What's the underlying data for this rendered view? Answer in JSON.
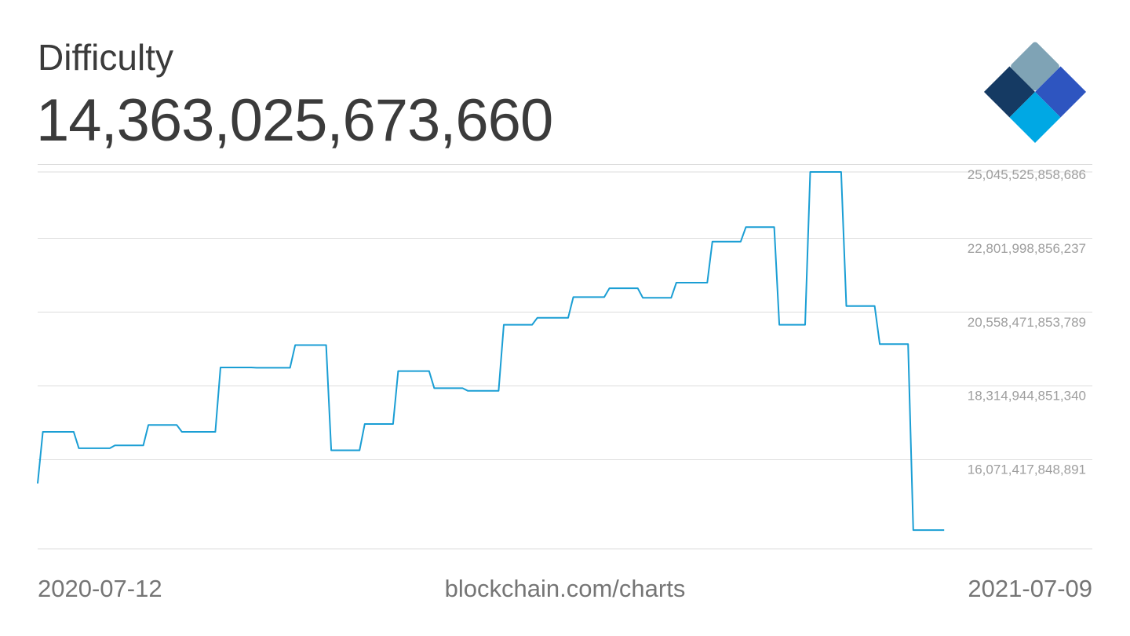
{
  "header": {
    "title": "Difficulty",
    "value": "14,363,025,673,660"
  },
  "logo": {
    "icon": "blockchain-logo-icon"
  },
  "footer": {
    "start_date": "2020-07-12",
    "source": "blockchain.com/charts",
    "end_date": "2021-07-09"
  },
  "colors": {
    "line": "#1a9ed4",
    "grid": "#dddddd",
    "tick_text": "#9e9e9e",
    "text": "#3b3b3b"
  },
  "chart_data": {
    "type": "line",
    "title": "Difficulty",
    "xlabel": "",
    "ylabel": "",
    "xlim": [
      "2020-07-12",
      "2021-07-09"
    ],
    "ylim": [
      13790000000000,
      25260000000000
    ],
    "grid": true,
    "yticks": [
      16071417848891,
      18314944851340,
      20558471853789,
      22801998856237,
      25045525858686
    ],
    "ytick_labels": [
      "16,071,417,848,891",
      "18,314,944,851,340",
      "20,558,471,853,789",
      "22,801,998,856,237",
      "25,045,525,858,686"
    ],
    "series": [
      {
        "x": [
          "2020-07-12",
          "2020-07-14",
          "2020-07-26",
          "2020-07-28",
          "2020-08-09",
          "2020-08-11",
          "2020-08-22",
          "2020-08-24",
          "2020-09-04",
          "2020-09-06",
          "2020-09-19",
          "2020-09-21",
          "2020-10-03",
          "2020-10-05",
          "2020-10-18",
          "2020-10-20",
          "2020-11-01",
          "2020-11-03",
          "2020-11-14",
          "2020-11-16",
          "2020-11-27",
          "2020-11-29",
          "2020-12-11",
          "2020-12-13",
          "2020-12-24",
          "2020-12-26",
          "2021-01-07",
          "2021-01-09",
          "2021-01-20",
          "2021-01-22",
          "2021-02-03",
          "2021-02-05",
          "2021-02-17",
          "2021-02-19",
          "2021-03-02",
          "2021-03-04",
          "2021-03-15",
          "2021-03-17",
          "2021-03-29",
          "2021-03-31",
          "2021-04-11",
          "2021-04-13",
          "2021-04-24",
          "2021-04-26",
          "2021-05-06",
          "2021-05-08",
          "2021-05-20",
          "2021-05-22",
          "2021-06-02",
          "2021-06-04",
          "2021-06-15",
          "2021-06-17",
          "2021-06-29"
        ],
        "values": [
          15780000000000,
          17350000000000,
          17350000000000,
          16850000000000,
          16850000000000,
          16940000000000,
          16940000000000,
          17560000000000,
          17560000000000,
          17350000000000,
          17350000000000,
          19310000000000,
          19310000000000,
          19300000000000,
          19300000000000,
          19990000000000,
          19990000000000,
          16790000000000,
          16790000000000,
          17590000000000,
          17590000000000,
          19200000000000,
          19200000000000,
          18680000000000,
          18680000000000,
          18600000000000,
          18600000000000,
          20610000000000,
          20610000000000,
          20820000000000,
          20820000000000,
          21450000000000,
          21450000000000,
          21720000000000,
          21720000000000,
          21430000000000,
          21430000000000,
          21890000000000,
          21890000000000,
          23140000000000,
          23140000000000,
          23580000000000,
          23580000000000,
          20610000000000,
          20610000000000,
          25260000000000,
          25260000000000,
          21180000000000,
          21180000000000,
          20020000000000,
          20020000000000,
          14360000000000,
          14360000000000
        ]
      }
    ]
  }
}
